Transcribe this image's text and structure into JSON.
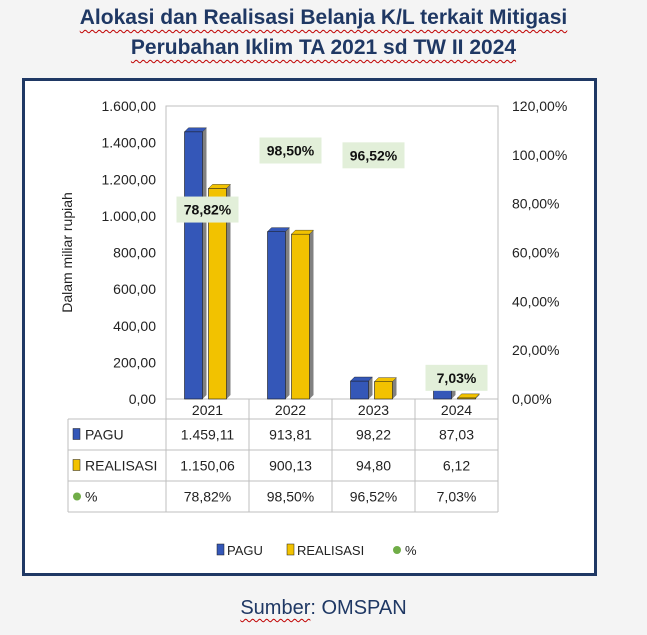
{
  "title_line1": "Alokasi dan Realisasi Belanja K/L terkait Mitigasi",
  "title_line2": "Perubahan Iklim TA 2021 sd TW II 2024",
  "source_prefix": "Sumber",
  "source_suffix": ": OMSPAN",
  "colors": {
    "pagu": "#3457b8",
    "realisasi": "#f2c200",
    "percent": "#70ad47",
    "label_bg": "#e2efd9",
    "title": "#1f3864"
  },
  "chart_data": {
    "type": "bar",
    "categories": [
      "2021",
      "2022",
      "2023",
      "2024"
    ],
    "series": [
      {
        "name": "PAGU",
        "values": [
          1459.11,
          913.81,
          98.22,
          87.03
        ],
        "labels": [
          "1.459,11",
          "913,81",
          "98,22",
          "87,03"
        ]
      },
      {
        "name": "REALISASI",
        "values": [
          1150.06,
          900.13,
          94.8,
          6.12
        ],
        "labels": [
          "1.150,06",
          "900,13",
          "94,80",
          "6,12"
        ]
      },
      {
        "name": "%",
        "axis": "right",
        "values": [
          78.82,
          98.5,
          96.52,
          7.03
        ],
        "labels": [
          "78,82%",
          "98,50%",
          "96,52%",
          "7,03%"
        ]
      }
    ],
    "ylabel": "Dalam miliar rupiah",
    "ylim": [
      0,
      1600
    ],
    "yticks": [
      "0,00",
      "200,00",
      "400,00",
      "600,00",
      "800,00",
      "1.000,00",
      "1.200,00",
      "1.400,00",
      "1.600,00"
    ],
    "y2lim": [
      0,
      120
    ],
    "y2ticks": [
      "0,00%",
      "20,00%",
      "40,00%",
      "60,00%",
      "80,00%",
      "100,00%",
      "120,00%"
    ],
    "legend": [
      "PAGU",
      "REALISASI",
      "%"
    ],
    "legend_position": "bottom",
    "data_table": true
  }
}
